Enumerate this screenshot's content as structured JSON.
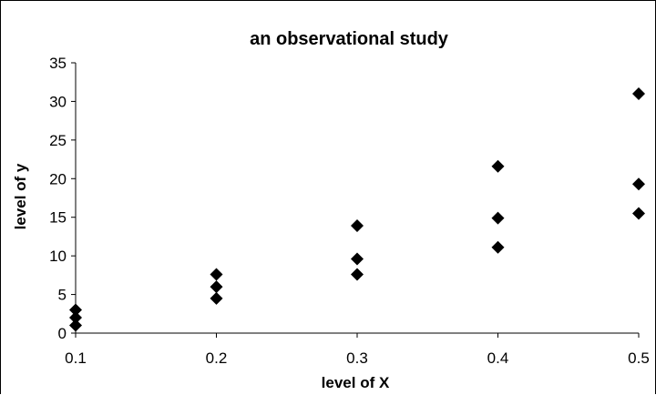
{
  "chart_data": {
    "type": "scatter",
    "title": "an observational study",
    "xlabel": "level of X",
    "ylabel": "level of y",
    "xlim": [
      0.1,
      0.5
    ],
    "ylim": [
      0,
      35
    ],
    "xticks": [
      "0.1",
      "0.2",
      "0.3",
      "0.4",
      "0.5"
    ],
    "yticks": [
      "0",
      "5",
      "10",
      "15",
      "20",
      "25",
      "30",
      "35"
    ],
    "grid": false,
    "legend": false,
    "marker": "diamond",
    "points": [
      {
        "x": 0.1,
        "y": 1.0
      },
      {
        "x": 0.1,
        "y": 2.0
      },
      {
        "x": 0.1,
        "y": 3.0
      },
      {
        "x": 0.2,
        "y": 4.5
      },
      {
        "x": 0.2,
        "y": 6.0
      },
      {
        "x": 0.2,
        "y": 7.6
      },
      {
        "x": 0.3,
        "y": 7.6
      },
      {
        "x": 0.3,
        "y": 9.6
      },
      {
        "x": 0.3,
        "y": 13.9
      },
      {
        "x": 0.4,
        "y": 11.1
      },
      {
        "x": 0.4,
        "y": 14.9
      },
      {
        "x": 0.4,
        "y": 21.6
      },
      {
        "x": 0.5,
        "y": 15.5
      },
      {
        "x": 0.5,
        "y": 19.3
      },
      {
        "x": 0.5,
        "y": 31.0
      }
    ]
  }
}
